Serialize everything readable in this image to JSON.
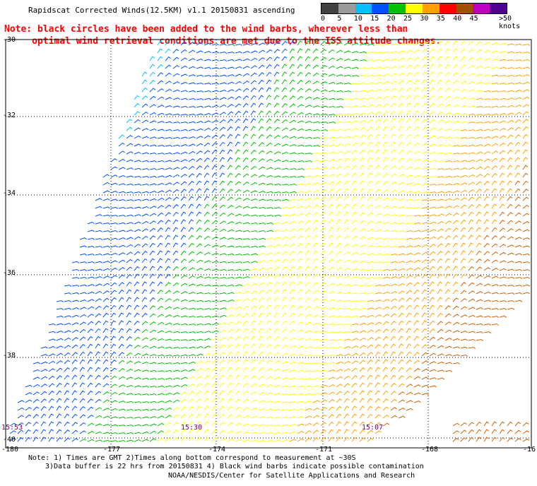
{
  "title": "Rapidscat Corrected Winds(12.5KM) v1.1 20150831 ascending",
  "colorbar": {
    "labels": [
      "0",
      "5",
      "10",
      "15",
      "20",
      "25",
      "30",
      "35",
      "40",
      "45",
      ">50 knots"
    ],
    "colors": [
      "#404040",
      "#9a9a9a",
      "#00c0ff",
      "#0050ff",
      "#00c000",
      "#ffff00",
      "#ffa000",
      "#ff0000",
      "#a05000",
      "#c000c0",
      "#500090"
    ]
  },
  "note": {
    "line1": "Note: black circles have been added to the wind barbs, wherever less than",
    "line2": "     optimal wind retrieval conditions are met due to the ISS attitude changes."
  },
  "map": {
    "lat_labels": [
      "-30",
      "-32",
      "-34",
      "-36",
      "-38",
      "-40"
    ],
    "lon_labels": [
      "-180",
      "-177",
      "-174",
      "-171",
      "-168",
      "-16"
    ],
    "time_labels": [
      "15:53",
      "15:30",
      "15:07"
    ]
  },
  "footer": {
    "line1": "Note: 1) Times are GMT 2)Times along bottom correspond to measurement at ~30S",
    "line2": "3)Data buffer is 22 hrs from 20150831 4) Black wind barbs indicate possible contamination",
    "line3": "NOAA/NESDIS/Center for Satellite Applications and Research"
  }
}
